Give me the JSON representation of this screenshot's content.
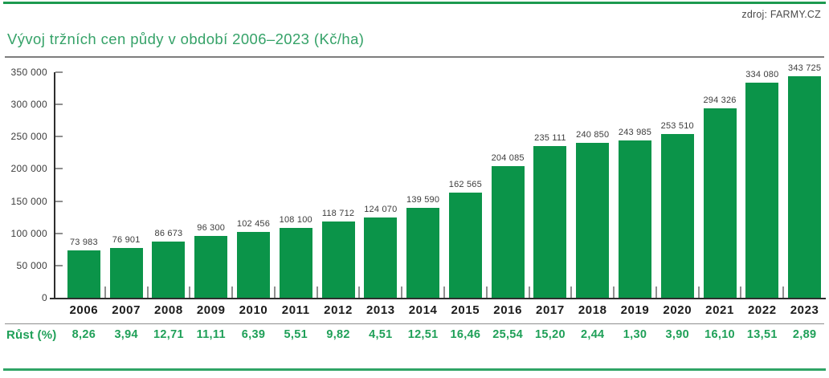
{
  "header": {
    "source": "zdroj: FARMY.CZ",
    "title": "Vývoj tržních cen půdy v období 2006–2023 (Kč/ha)"
  },
  "growth": {
    "label": "Růst (%)"
  },
  "colors": {
    "bar": "#0B9449",
    "title_green": "#35A268",
    "growth_green": "#1FA058",
    "top_rule_green": "#1D9A50",
    "bottom_rule_green": "#2FA466",
    "axis_dark": "#2E2E2E",
    "tick_gray": "#8F8F8F",
    "gray_rule": "#7D7D7D",
    "gray_rule2": "#8F8F8F",
    "label_text": "#3C3C3C",
    "year_text": "#1B1B1B",
    "source_text": "#4A4A4A"
  },
  "chart_data": {
    "type": "bar",
    "title": "Vývoj tržních cen půdy v období 2006–2023 (Kč/ha)",
    "unit": "Kč/ha",
    "categories": [
      "2006",
      "2007",
      "2008",
      "2009",
      "2010",
      "2011",
      "2012",
      "2013",
      "2014",
      "2015",
      "2016",
      "2017",
      "2018",
      "2019",
      "2020",
      "2021",
      "2022",
      "2023"
    ],
    "values": [
      73983,
      76901,
      86673,
      96300,
      102456,
      108100,
      118712,
      124070,
      139590,
      162565,
      204085,
      235111,
      240850,
      243985,
      253510,
      294326,
      334080,
      343725
    ],
    "value_labels": [
      "73 983",
      "76 901",
      "86 673",
      "96 300",
      "102 456",
      "108 100",
      "118 712",
      "124 070",
      "139 590",
      "162 565",
      "204 085",
      "235 111",
      "240 850",
      "243 985",
      "253 510",
      "294 326",
      "334 080",
      "343 725"
    ],
    "growth_pct": [
      8.26,
      3.94,
      12.71,
      11.11,
      6.39,
      5.51,
      9.82,
      4.51,
      12.51,
      16.46,
      25.54,
      15.2,
      2.44,
      1.3,
      3.9,
      16.1,
      13.51,
      2.89
    ],
    "growth_pct_labels": [
      "8,26",
      "3,94",
      "12,71",
      "11,11",
      "6,39",
      "5,51",
      "9,82",
      "4,51",
      "12,51",
      "16,46",
      "25,54",
      "15,20",
      "2,44",
      "1,30",
      "3,90",
      "16,10",
      "13,51",
      "2,89"
    ],
    "y_ticks": [
      {
        "value": 350000,
        "label": "350 000"
      },
      {
        "value": 300000,
        "label": "300 000"
      },
      {
        "value": 250000,
        "label": "250 000"
      },
      {
        "value": 200000,
        "label": "200 000"
      },
      {
        "value": 150000,
        "label": "150 000"
      },
      {
        "value": 100000,
        "label": "100 000"
      },
      {
        "value": 50000,
        "label": "50 000"
      },
      {
        "value": 0,
        "label": "0"
      }
    ],
    "ylim": [
      0,
      350000
    ],
    "xlabel": "",
    "ylabel": "",
    "grid": false,
    "legend": false
  }
}
